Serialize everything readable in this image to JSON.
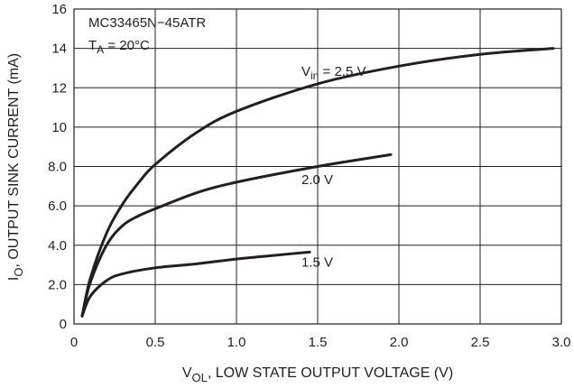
{
  "chart_data": {
    "type": "line",
    "annotation": {
      "part": "MC33465N−45ATR",
      "temp_main": "T",
      "temp_sub": "A",
      "temp_rest": " = 20°C"
    },
    "xlabel": {
      "main": "V",
      "sub": "OL",
      "rest": ", LOW STATE OUTPUT VOLTAGE (V)"
    },
    "ylabel": {
      "main": "I",
      "sub": "O",
      "rest": ", OUTPUT SINK CURRENT (mA)"
    },
    "xlim": [
      0,
      3.0
    ],
    "ylim": [
      0,
      16
    ],
    "x_ticks": [
      {
        "value": 0,
        "label": "0"
      },
      {
        "value": 0.5,
        "label": "0.5"
      },
      {
        "value": 1.0,
        "label": "1.0"
      },
      {
        "value": 1.5,
        "label": "1.5"
      },
      {
        "value": 2.0,
        "label": "2.0"
      },
      {
        "value": 2.5,
        "label": "2.5"
      },
      {
        "value": 3.0,
        "label": "3.0"
      }
    ],
    "y_ticks": [
      {
        "value": 0,
        "label": "0"
      },
      {
        "value": 2,
        "label": "2.0"
      },
      {
        "value": 4,
        "label": "4.0"
      },
      {
        "value": 6,
        "label": "6.0"
      },
      {
        "value": 8,
        "label": "8.0"
      },
      {
        "value": 10,
        "label": "10"
      },
      {
        "value": 12,
        "label": "12"
      },
      {
        "value": 14,
        "label": "14"
      },
      {
        "value": 16,
        "label": "16"
      }
    ],
    "grid": true,
    "series": [
      {
        "name": "V",
        "name_sub": "in",
        "name_rest": " = 2.5 V",
        "label_at": [
          1.4,
          12.6
        ],
        "points": [
          [
            0.05,
            0.4
          ],
          [
            0.1,
            2.3
          ],
          [
            0.2,
            4.6
          ],
          [
            0.3,
            6.1
          ],
          [
            0.4,
            7.2
          ],
          [
            0.5,
            8.1
          ],
          [
            0.75,
            9.7
          ],
          [
            1.0,
            10.8
          ],
          [
            1.5,
            12.2
          ],
          [
            2.0,
            13.1
          ],
          [
            2.5,
            13.7
          ],
          [
            2.95,
            14.0
          ]
        ]
      },
      {
        "name": "2.0 V",
        "label_at": [
          1.4,
          7.1
        ],
        "points": [
          [
            0.05,
            0.4
          ],
          [
            0.1,
            2.1
          ],
          [
            0.2,
            4.0
          ],
          [
            0.3,
            5.0
          ],
          [
            0.4,
            5.5
          ],
          [
            0.5,
            5.85
          ],
          [
            0.75,
            6.65
          ],
          [
            1.0,
            7.2
          ],
          [
            1.5,
            8.0
          ],
          [
            1.95,
            8.6
          ]
        ]
      },
      {
        "name": "1.5 V",
        "label_at": [
          1.4,
          2.9
        ],
        "points": [
          [
            0.05,
            0.4
          ],
          [
            0.1,
            1.4
          ],
          [
            0.2,
            2.2
          ],
          [
            0.3,
            2.55
          ],
          [
            0.5,
            2.85
          ],
          [
            0.75,
            3.05
          ],
          [
            1.0,
            3.3
          ],
          [
            1.25,
            3.5
          ],
          [
            1.45,
            3.65
          ]
        ]
      }
    ]
  }
}
